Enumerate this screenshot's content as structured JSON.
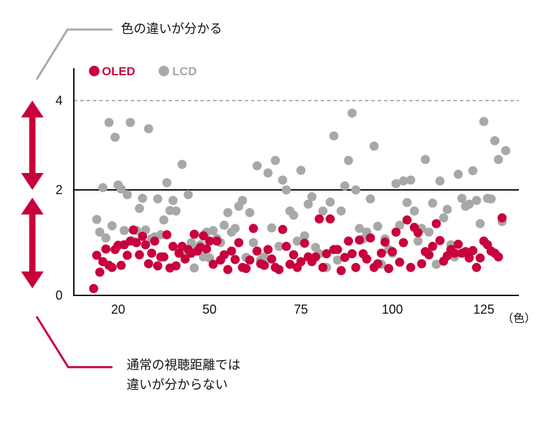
{
  "annotations": {
    "top": "色の違いが分かる",
    "bottom": [
      "通常の視聴距離では",
      "違いが分からない"
    ]
  },
  "chart_data": {
    "type": "scatter",
    "xlabel": "（色）",
    "xlim": [
      5.5,
      134.6
    ],
    "ylim": [
      0,
      4.7
    ],
    "xticks": [
      20,
      50,
      75,
      100,
      125
    ],
    "yticks": [
      0,
      2,
      4
    ],
    "reference_lines": [
      {
        "y": 2,
        "style": "solid"
      },
      {
        "y": 4,
        "style": "dashed"
      }
    ],
    "legend": "top-left",
    "series": [
      {
        "name": "OLED",
        "color": "#c8003c",
        "points": [
          [
            12,
            0.13
          ],
          [
            13,
            0.76
          ],
          [
            14,
            0.44
          ],
          [
            15,
            0.64
          ],
          [
            16,
            0.88
          ],
          [
            17,
            0.57
          ],
          [
            18,
            0.53
          ],
          [
            19,
            0.87
          ],
          [
            20,
            0.95
          ],
          [
            21,
            0.57
          ],
          [
            22,
            0.96
          ],
          [
            23,
            0.76
          ],
          [
            24,
            1.03
          ],
          [
            25,
            1.24
          ],
          [
            26,
            1.0
          ],
          [
            27,
            0.77
          ],
          [
            28,
            1.12
          ],
          [
            29,
            0.96
          ],
          [
            30,
            0.6
          ],
          [
            31,
            0.8
          ],
          [
            32,
            1.03
          ],
          [
            33,
            0.56
          ],
          [
            34,
            0.73
          ],
          [
            35,
            0.73
          ],
          [
            36,
            1.15
          ],
          [
            37,
            0.52
          ],
          [
            38,
            0.93
          ],
          [
            39,
            0.56
          ],
          [
            40,
            0.8
          ],
          [
            41,
            0.93
          ],
          [
            42,
            0.69
          ],
          [
            43,
            0.87
          ],
          [
            44,
            0.8
          ],
          [
            45,
            1.16
          ],
          [
            46,
            0.84
          ],
          [
            47,
            0.91
          ],
          [
            48,
            1.13
          ],
          [
            49,
            0.88
          ],
          [
            50,
            1.03
          ],
          [
            51,
            0.59
          ],
          [
            52,
            1.03
          ],
          [
            53,
            0.67
          ],
          [
            54,
            0.77
          ],
          [
            55,
            0.49
          ],
          [
            56,
            0.84
          ],
          [
            57,
            0.68
          ],
          [
            58,
            1.0
          ],
          [
            59,
            0.53
          ],
          [
            60,
            0.51
          ],
          [
            61,
            0.67
          ],
          [
            62,
            1.27
          ],
          [
            63,
            0.84
          ],
          [
            64,
            0.6
          ],
          [
            65,
            0.57
          ],
          [
            66,
            0.87
          ],
          [
            67,
            0.69
          ],
          [
            68,
            0.53
          ],
          [
            69,
            0.49
          ],
          [
            70,
            1.25
          ],
          [
            71,
            0.93
          ],
          [
            72,
            0.59
          ],
          [
            73,
            0.77
          ],
          [
            74,
            0.53
          ],
          [
            75,
            0.64
          ],
          [
            76,
            0.99
          ],
          [
            77,
            0.73
          ],
          [
            78,
            0.64
          ],
          [
            79,
            0.73
          ],
          [
            80,
            1.45
          ],
          [
            81,
            0.53
          ],
          [
            82,
            0.79
          ],
          [
            83,
            1.45
          ],
          [
            84,
            0.87
          ],
          [
            85,
            0.87
          ],
          [
            86,
            0.47
          ],
          [
            87,
            0.72
          ],
          [
            88,
            1.03
          ],
          [
            89,
            0.79
          ],
          [
            90,
            0.53
          ],
          [
            91,
            1.05
          ],
          [
            92,
            0.79
          ],
          [
            93,
            0.69
          ],
          [
            94,
            1.09
          ],
          [
            95,
            0.53
          ],
          [
            96,
            0.6
          ],
          [
            97,
            0.8
          ],
          [
            98,
            1.01
          ],
          [
            99,
            0.51
          ],
          [
            100,
            0.83
          ],
          [
            101,
            1.2
          ],
          [
            102,
            0.63
          ],
          [
            103,
            1.0
          ],
          [
            104,
            1.43
          ],
          [
            105,
            0.53
          ],
          [
            106,
            1.29
          ],
          [
            107,
            1.19
          ],
          [
            108,
            0.6
          ],
          [
            109,
            0.83
          ],
          [
            110,
            0.77
          ],
          [
            111,
            0.93
          ],
          [
            112,
            1.36
          ],
          [
            113,
            1.04
          ],
          [
            114,
            0.65
          ],
          [
            115,
            0.75
          ],
          [
            116,
            0.87
          ],
          [
            117,
            0.8
          ],
          [
            118,
            0.97
          ],
          [
            119,
            0.8
          ],
          [
            120,
            0.83
          ],
          [
            121,
            0.71
          ],
          [
            122,
            0.85
          ],
          [
            123,
            0.53
          ],
          [
            124,
            0.71
          ],
          [
            125,
            1.03
          ],
          [
            126,
            0.96
          ],
          [
            127,
            0.84
          ],
          [
            128,
            0.8
          ],
          [
            129,
            0.73
          ],
          [
            130,
            1.47
          ]
        ]
      },
      {
        "name": "LCD",
        "color": "#a8a8a8",
        "points": [
          [
            13,
            1.44
          ],
          [
            14,
            1.2
          ],
          [
            15,
            2.05
          ],
          [
            16,
            1.09
          ],
          [
            17,
            3.51
          ],
          [
            18,
            1.32
          ],
          [
            19,
            3.18
          ],
          [
            20,
            2.11
          ],
          [
            21,
            2.02
          ],
          [
            22,
            1.23
          ],
          [
            23,
            1.91
          ],
          [
            24,
            3.51
          ],
          [
            25,
            1.03
          ],
          [
            26,
            1.23
          ],
          [
            27,
            1.65
          ],
          [
            28,
            1.84
          ],
          [
            29,
            1.24
          ],
          [
            30,
            3.37
          ],
          [
            31,
            1.08
          ],
          [
            32,
            1.11
          ],
          [
            33,
            1.83
          ],
          [
            34,
            1.15
          ],
          [
            35,
            1.43
          ],
          [
            36,
            2.16
          ],
          [
            37,
            1.61
          ],
          [
            38,
            1.8
          ],
          [
            39,
            1.6
          ],
          [
            40,
            0.84
          ],
          [
            41,
            2.57
          ],
          [
            42,
            0.73
          ],
          [
            43,
            1.91
          ],
          [
            44,
            1.0
          ],
          [
            45,
            0.52
          ],
          [
            46,
            0.89
          ],
          [
            47,
            0.96
          ],
          [
            48,
            0.73
          ],
          [
            49,
            1.2
          ],
          [
            50,
            0.71
          ],
          [
            51,
            1.23
          ],
          [
            52,
            1.08
          ],
          [
            53,
            1.0
          ],
          [
            54,
            1.33
          ],
          [
            55,
            1.57
          ],
          [
            56,
            1.2
          ],
          [
            57,
            1.27
          ],
          [
            58,
            1.69
          ],
          [
            59,
            1.8
          ],
          [
            60,
            0.72
          ],
          [
            61,
            1.57
          ],
          [
            62,
            1.0
          ],
          [
            63,
            2.54
          ],
          [
            64,
            0.67
          ],
          [
            65,
            0.73
          ],
          [
            66,
            2.38
          ],
          [
            67,
            1.28
          ],
          [
            68,
            2.66
          ],
          [
            69,
            0.93
          ],
          [
            70,
            2.22
          ],
          [
            71,
            2.0
          ],
          [
            72,
            1.6
          ],
          [
            73,
            1.52
          ],
          [
            74,
            1.03
          ],
          [
            75,
            2.44
          ],
          [
            76,
            1.13
          ],
          [
            77,
            1.73
          ],
          [
            78,
            1.87
          ],
          [
            79,
            0.91
          ],
          [
            80,
            0.79
          ],
          [
            81,
            1.6
          ],
          [
            82,
            0.53
          ],
          [
            83,
            1.77
          ],
          [
            84,
            3.21
          ],
          [
            85,
            0.67
          ],
          [
            86,
            1.6
          ],
          [
            87,
            2.09
          ],
          [
            88,
            2.66
          ],
          [
            89,
            3.72
          ],
          [
            90,
            2.0
          ],
          [
            91,
            1.27
          ],
          [
            92,
            1.07
          ],
          [
            93,
            1.2
          ],
          [
            94,
            1.83
          ],
          [
            95,
            2.98
          ],
          [
            96,
            1.31
          ],
          [
            97,
            0.59
          ],
          [
            98,
            1.07
          ],
          [
            99,
            0.87
          ],
          [
            100,
            0.8
          ],
          [
            101,
            2.14
          ],
          [
            102,
            1.33
          ],
          [
            103,
            2.2
          ],
          [
            104,
            1.76
          ],
          [
            105,
            2.22
          ],
          [
            106,
            1.6
          ],
          [
            107,
            1.03
          ],
          [
            108,
            1.27
          ],
          [
            109,
            2.68
          ],
          [
            110,
            1.2
          ],
          [
            111,
            1.75
          ],
          [
            112,
            0.59
          ],
          [
            113,
            2.2
          ],
          [
            114,
            1.47
          ],
          [
            115,
            1.63
          ],
          [
            116,
            0.96
          ],
          [
            117,
            0.73
          ],
          [
            118,
            2.35
          ],
          [
            119,
            1.84
          ],
          [
            120,
            1.69
          ],
          [
            121,
            1.73
          ],
          [
            122,
            2.43
          ],
          [
            123,
            1.8
          ],
          [
            124,
            1.36
          ],
          [
            125,
            3.53
          ],
          [
            126,
            1.84
          ],
          [
            127,
            1.83
          ],
          [
            128,
            3.1
          ],
          [
            129,
            2.68
          ],
          [
            130,
            1.4
          ],
          [
            131,
            2.88
          ]
        ]
      }
    ]
  }
}
